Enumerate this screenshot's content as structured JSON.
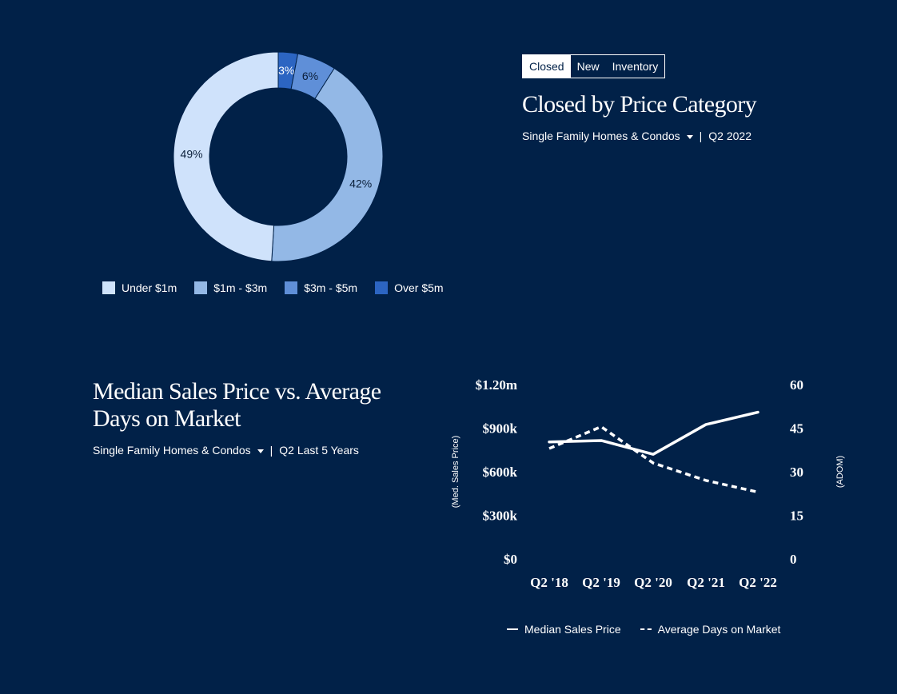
{
  "tabs": [
    {
      "label": "Closed",
      "active": true
    },
    {
      "label": "New",
      "active": false
    },
    {
      "label": "Inventory",
      "active": false
    }
  ],
  "top_section": {
    "title": "Closed by Price Category",
    "filter": "Single Family Homes & Condos",
    "period": "Q2 2022"
  },
  "bottom_section": {
    "title_line1": "Median Sales Price vs. Average",
    "title_line2": "Days on Market",
    "filter": "Single Family Homes & Condos",
    "period": "Q2 Last 5 Years"
  },
  "chart_data": [
    {
      "type": "pie",
      "style": "donut",
      "labels": [
        "Under $1m",
        "$1m - $3m",
        "$3m - $5m",
        "Over $5m"
      ],
      "values": [
        49,
        42,
        6,
        3
      ],
      "value_labels": [
        "49%",
        "42%",
        "6%",
        "3%"
      ],
      "colors": [
        "#cfe2fb",
        "#93b8e6",
        "#5f8fd8",
        "#2c65c2"
      ],
      "legend": "bottom"
    },
    {
      "type": "line",
      "x": [
        "Q2 '18",
        "Q2 '19",
        "Q2 '20",
        "Q2 '21",
        "Q2 '22"
      ],
      "series": [
        {
          "name": "Median Sales Price",
          "axis": "left",
          "style": "solid",
          "values": [
            805000,
            815000,
            720000,
            925000,
            1010000
          ]
        },
        {
          "name": "Average Days on Market",
          "axis": "right",
          "style": "dashed",
          "values": [
            38,
            45.5,
            33,
            27,
            23
          ]
        }
      ],
      "y_left": {
        "label": "(Med. Sales Price)",
        "ticks": [
          "$1.20m",
          "$900k",
          "$600k",
          "$300k",
          "$0"
        ],
        "range": [
          0,
          1200000
        ]
      },
      "y_right": {
        "label": "(ADOM)",
        "ticks": [
          "60",
          "45",
          "30",
          "15",
          "0"
        ],
        "range": [
          0,
          60
        ]
      },
      "grid": false,
      "legend": "bottom"
    }
  ]
}
